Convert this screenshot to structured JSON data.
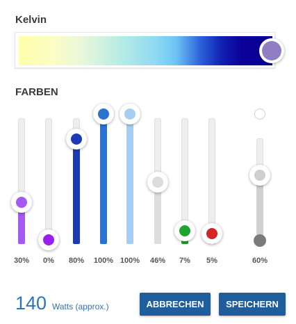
{
  "kelvin": {
    "title": "Kelvin",
    "thumb_color": "#8f7fc2",
    "position_fraction": 0.98
  },
  "farben": {
    "title": "FARBEN",
    "channels": [
      {
        "percent": "30%",
        "value": 0.3,
        "color": "#a45af0"
      },
      {
        "percent": "0%",
        "value": 0.0,
        "color": "#9b20f0"
      },
      {
        "percent": "80%",
        "value": 0.8,
        "color": "#1d3ab5"
      },
      {
        "percent": "100%",
        "value": 1.0,
        "color": "#2a72d2"
      },
      {
        "percent": "100%",
        "value": 1.0,
        "color": "#a8cdf3"
      },
      {
        "percent": "46%",
        "value": 0.46,
        "color": "#dddddd"
      },
      {
        "percent": "7%",
        "value": 0.07,
        "color": "#1ca42e"
      },
      {
        "percent": "5%",
        "value": 0.05,
        "color": "#d32626"
      }
    ],
    "master": {
      "percent": "60%",
      "value": 0.6,
      "color": "#d0d0d0"
    }
  },
  "power": {
    "watts": "140",
    "label": "Watts (approx.)"
  },
  "buttons": {
    "cancel": "ABBRECHEN",
    "save": "SPEICHERN"
  }
}
